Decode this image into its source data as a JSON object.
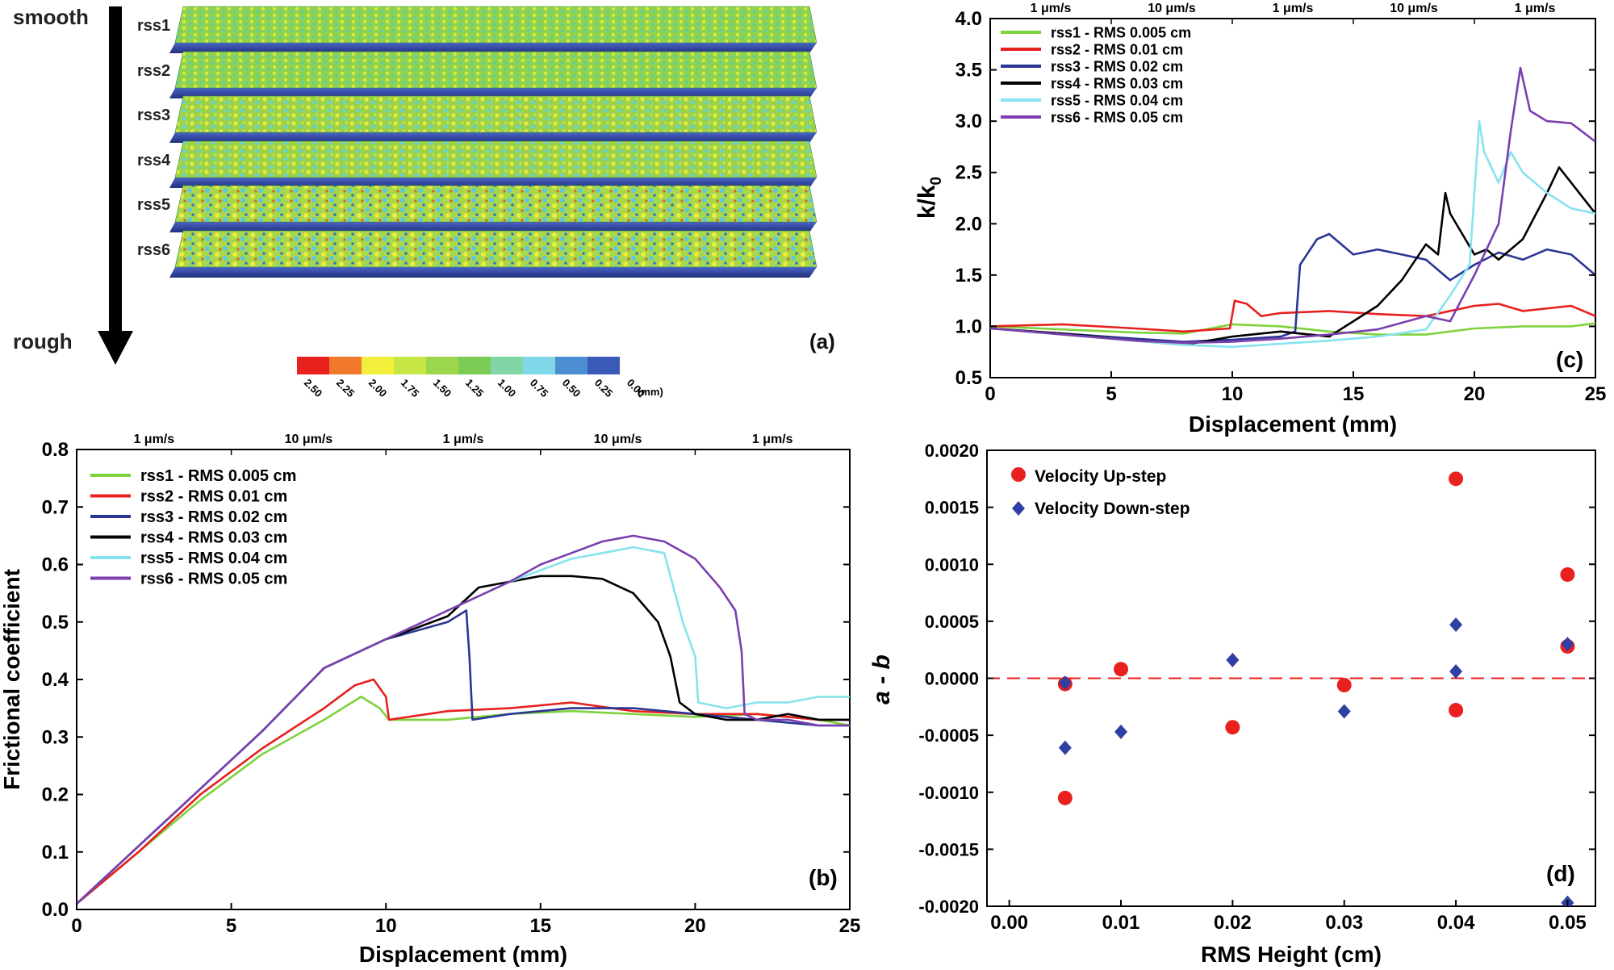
{
  "colors": {
    "rss1": "#7ed23c",
    "rss2": "#e8201e",
    "rss3": "#2b3594",
    "rss4": "#000000",
    "rss5": "#86e3ef",
    "rss6": "#7b3fae",
    "up": "#e8201e",
    "down": "#2f3fa3",
    "zero": "#e8201e"
  },
  "panel_a": {
    "top_label": "smooth",
    "bottom_label": "rough",
    "panel_label": "(a)",
    "sample_labels": [
      "rss1",
      "rss2",
      "rss3",
      "rss4",
      "rss5",
      "rss6"
    ],
    "colorbar_ticks": [
      "2.50",
      "2.25",
      "2.00",
      "1.75",
      "1.50",
      "1.25",
      "1.00",
      "0.75",
      "0.50",
      "0.25",
      "0.00"
    ],
    "colorbar_unit": "(mm)",
    "colorbar_colors": [
      "#e8201e",
      "#f07a2a",
      "#f2ef3c",
      "#c5e645",
      "#9cd64a",
      "#7bcc54",
      "#80d6a6",
      "#7fd8e8",
      "#4d8ed0",
      "#3a5ab8"
    ]
  },
  "chart_data": [
    {
      "id": "b",
      "type": "line",
      "panel_label": "(b)",
      "xlabel": "Displacement (mm)",
      "ylabel": "Frictional coefficient",
      "xlim": [
        0,
        25
      ],
      "ylim": [
        0,
        0.8
      ],
      "xticks": [
        0,
        5,
        10,
        15,
        20,
        25
      ],
      "yticks": [
        "0.0",
        "0.1",
        "0.2",
        "0.3",
        "0.4",
        "0.5",
        "0.6",
        "0.7",
        "0.8"
      ],
      "top_velocity_labels": [
        "1 μm/s",
        "10 μm/s",
        "1 μm/s",
        "10 μm/s",
        "1 μm/s"
      ],
      "top_velocity_boundaries": [
        0,
        5,
        10,
        15,
        20,
        25
      ],
      "legend": [
        "rss1 - RMS 0.005 cm",
        "rss2 - RMS 0.01 cm",
        "rss3 - RMS 0.02 cm",
        "rss4 - RMS 0.03 cm",
        "rss5 - RMS 0.04 cm",
        "rss6 - RMS 0.05 cm"
      ],
      "series": [
        {
          "name": "rss1 - RMS 0.005 cm",
          "key": "rss1",
          "x": [
            0,
            2,
            4,
            6,
            8,
            9.2,
            9.8,
            10.1,
            12,
            14,
            16,
            18,
            20,
            22,
            24,
            25
          ],
          "y": [
            0.01,
            0.1,
            0.19,
            0.27,
            0.33,
            0.37,
            0.35,
            0.33,
            0.33,
            0.34,
            0.345,
            0.34,
            0.335,
            0.34,
            0.33,
            0.32
          ]
        },
        {
          "name": "rss2 - RMS 0.01 cm",
          "key": "rss2",
          "x": [
            0,
            2,
            4,
            6,
            8,
            9,
            9.6,
            10.0,
            10.1,
            12,
            14,
            16,
            18,
            20,
            22,
            24,
            25
          ],
          "y": [
            0.01,
            0.1,
            0.2,
            0.28,
            0.35,
            0.39,
            0.4,
            0.37,
            0.33,
            0.345,
            0.35,
            0.36,
            0.345,
            0.34,
            0.34,
            0.33,
            0.33
          ]
        },
        {
          "name": "rss3 - RMS 0.02 cm",
          "key": "rss3",
          "x": [
            0,
            2,
            4,
            6,
            8,
            10,
            12,
            12.6,
            12.7,
            12.8,
            14,
            16,
            18,
            20,
            22,
            24,
            25
          ],
          "y": [
            0.01,
            0.11,
            0.21,
            0.31,
            0.42,
            0.47,
            0.5,
            0.52,
            0.44,
            0.33,
            0.34,
            0.35,
            0.35,
            0.34,
            0.33,
            0.32,
            0.32
          ]
        },
        {
          "name": "rss4 - RMS 0.03 cm",
          "key": "rss4",
          "x": [
            0,
            2,
            4,
            6,
            8,
            10,
            12,
            13,
            14,
            15,
            16,
            17,
            18,
            18.8,
            19.2,
            19.5,
            20,
            21,
            22,
            23,
            24,
            25
          ],
          "y": [
            0.01,
            0.11,
            0.21,
            0.31,
            0.42,
            0.47,
            0.51,
            0.56,
            0.57,
            0.58,
            0.58,
            0.575,
            0.55,
            0.5,
            0.44,
            0.36,
            0.34,
            0.33,
            0.33,
            0.34,
            0.33,
            0.33
          ]
        },
        {
          "name": "rss5 - RMS 0.04 cm",
          "key": "rss5",
          "x": [
            0,
            2,
            4,
            6,
            8,
            10,
            12,
            14,
            15,
            16,
            17,
            18,
            19,
            19.6,
            20.0,
            20.1,
            21,
            22,
            23,
            24,
            25
          ],
          "y": [
            0.01,
            0.11,
            0.21,
            0.31,
            0.42,
            0.47,
            0.52,
            0.57,
            0.59,
            0.61,
            0.62,
            0.63,
            0.62,
            0.5,
            0.44,
            0.36,
            0.35,
            0.36,
            0.36,
            0.37,
            0.37
          ]
        },
        {
          "name": "rss6 - RMS 0.05 cm",
          "key": "rss6",
          "x": [
            0,
            2,
            4,
            6,
            8,
            10,
            12,
            14,
            15,
            16,
            17,
            18,
            19,
            20,
            20.8,
            21.3,
            21.5,
            21.6,
            22,
            23,
            24,
            25
          ],
          "y": [
            0.01,
            0.11,
            0.21,
            0.31,
            0.42,
            0.47,
            0.52,
            0.57,
            0.6,
            0.62,
            0.64,
            0.65,
            0.64,
            0.61,
            0.56,
            0.52,
            0.45,
            0.34,
            0.33,
            0.33,
            0.32,
            0.32
          ]
        }
      ]
    },
    {
      "id": "c",
      "type": "line",
      "panel_label": "(c)",
      "xlabel": "Displacement (mm)",
      "ylabel": "k/k",
      "ylabel_sub": "0",
      "xlim": [
        0,
        25
      ],
      "ylim": [
        0.5,
        4.0
      ],
      "xticks": [
        0,
        5,
        10,
        15,
        20,
        25
      ],
      "yticks": [
        "0.5",
        "1.0",
        "1.5",
        "2.0",
        "2.5",
        "3.0",
        "3.5",
        "4.0"
      ],
      "top_velocity_labels": [
        "1 μm/s",
        "10 μm/s",
        "1 μm/s",
        "10 μm/s",
        "1 μm/s"
      ],
      "top_velocity_boundaries": [
        0,
        5,
        10,
        15,
        20,
        25
      ],
      "legend": [
        "rss1 - RMS 0.005 cm",
        "rss2 - RMS 0.01 cm",
        "rss3 - RMS 0.02 cm",
        "rss4 - RMS 0.03 cm",
        "rss5 - RMS 0.04 cm",
        "rss6 - RMS 0.05 cm"
      ],
      "series": [
        {
          "name": "rss1 - RMS 0.005 cm",
          "key": "rss1",
          "x": [
            0,
            3,
            6,
            8,
            10,
            12,
            14,
            16,
            18,
            20,
            22,
            24,
            25
          ],
          "y": [
            1.0,
            0.97,
            0.94,
            0.93,
            1.02,
            1.0,
            0.95,
            0.92,
            0.92,
            0.98,
            1.0,
            1.0,
            1.03
          ]
        },
        {
          "name": "rss2 - RMS 0.01 cm",
          "key": "rss2",
          "x": [
            0,
            3,
            6,
            8,
            9.9,
            10.1,
            10.6,
            11.2,
            12,
            14,
            16,
            18,
            20,
            21,
            22,
            24,
            25
          ],
          "y": [
            1.0,
            1.02,
            0.98,
            0.95,
            0.98,
            1.25,
            1.22,
            1.1,
            1.13,
            1.15,
            1.12,
            1.1,
            1.2,
            1.22,
            1.15,
            1.2,
            1.1
          ]
        },
        {
          "name": "rss3 - RMS 0.02 cm",
          "key": "rss3",
          "x": [
            0,
            3,
            6,
            8,
            10,
            12,
            12.6,
            12.8,
            13.5,
            14,
            15,
            16,
            17,
            18,
            19,
            20,
            21,
            22,
            23,
            24,
            25
          ],
          "y": [
            0.98,
            0.93,
            0.88,
            0.85,
            0.87,
            0.9,
            0.95,
            1.6,
            1.85,
            1.9,
            1.7,
            1.75,
            1.7,
            1.65,
            1.45,
            1.6,
            1.72,
            1.65,
            1.75,
            1.7,
            1.5
          ]
        },
        {
          "name": "rss4 - RMS 0.03 cm",
          "key": "rss4",
          "x": [
            0,
            3,
            6,
            8,
            10,
            12,
            14,
            15,
            16,
            17,
            18,
            18.5,
            18.8,
            19,
            19.5,
            20,
            20.5,
            21,
            22,
            23,
            23.5,
            24,
            25
          ],
          "y": [
            0.98,
            0.93,
            0.86,
            0.82,
            0.9,
            0.95,
            0.9,
            1.05,
            1.2,
            1.45,
            1.8,
            1.7,
            2.3,
            2.1,
            1.9,
            1.7,
            1.75,
            1.65,
            1.85,
            2.3,
            2.55,
            2.4,
            2.1
          ]
        },
        {
          "name": "rss5 - RMS 0.04 cm",
          "key": "rss5",
          "x": [
            0,
            3,
            6,
            8,
            10,
            12,
            14,
            16,
            18,
            19,
            19.8,
            20.2,
            20.4,
            21,
            21.5,
            22,
            23,
            24,
            25
          ],
          "y": [
            0.98,
            0.92,
            0.86,
            0.82,
            0.8,
            0.83,
            0.86,
            0.9,
            0.97,
            1.3,
            1.6,
            3.0,
            2.7,
            2.4,
            2.7,
            2.5,
            2.3,
            2.15,
            2.1
          ]
        },
        {
          "name": "rss6 - RMS 0.05 cm",
          "key": "rss6",
          "x": [
            0,
            3,
            6,
            8,
            10,
            12,
            14,
            16,
            18,
            19,
            20,
            21,
            21.5,
            21.9,
            22.3,
            23,
            24,
            25
          ],
          "y": [
            0.98,
            0.92,
            0.86,
            0.84,
            0.85,
            0.88,
            0.92,
            0.97,
            1.1,
            1.05,
            1.5,
            2.0,
            2.9,
            3.52,
            3.1,
            3.0,
            2.98,
            2.8
          ]
        }
      ]
    },
    {
      "id": "d",
      "type": "scatter",
      "panel_label": "(d)",
      "xlabel": "RMS Height (cm)",
      "ylabel": "a - b",
      "xlim": [
        -0.002,
        0.0525
      ],
      "ylim": [
        -0.002,
        0.002
      ],
      "xticks": [
        "0.00",
        "0.01",
        "0.02",
        "0.03",
        "0.04",
        "0.05"
      ],
      "yticks": [
        "-0.0020",
        "-0.0015",
        "-0.0010",
        "-0.0005",
        "0.0000",
        "0.0005",
        "0.0010",
        "0.0015",
        "0.0020"
      ],
      "reference_line_y": 0,
      "legend": [
        "Velocity Up-step",
        "Velocity Down-step"
      ],
      "series": [
        {
          "name": "Velocity Up-step",
          "key": "up",
          "x": [
            0.005,
            0.005,
            0.01,
            0.02,
            0.03,
            0.04,
            0.04,
            0.05,
            0.05
          ],
          "y": [
            -5e-05,
            -0.00105,
            8e-05,
            -0.00043,
            -6e-05,
            0.00175,
            -0.00028,
            0.00091,
            0.00028
          ]
        },
        {
          "name": "Velocity Down-step",
          "key": "down",
          "x": [
            0.005,
            0.005,
            0.01,
            0.02,
            0.03,
            0.04,
            0.04,
            0.05,
            0.05
          ],
          "y": [
            -4e-05,
            -0.00061,
            -0.00047,
            0.00016,
            -0.00029,
            0.00047,
            6e-05,
            0.0003,
            -0.00197
          ]
        }
      ]
    }
  ]
}
